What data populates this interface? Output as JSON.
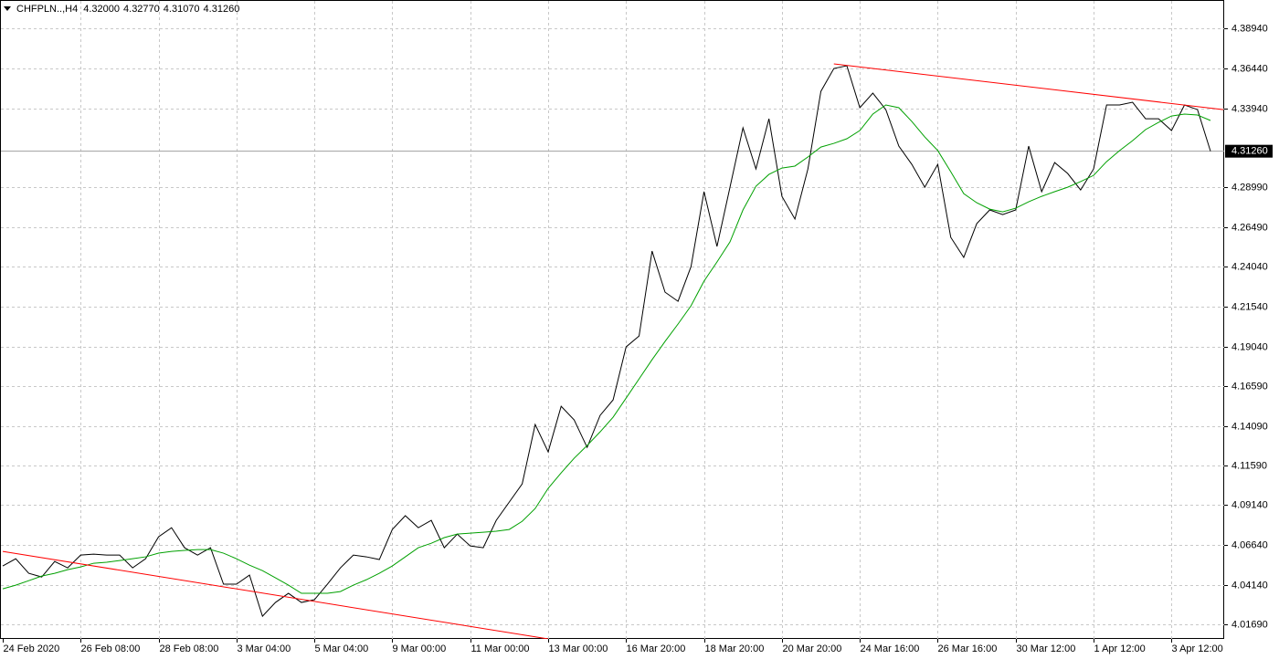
{
  "chart_data": {
    "type": "line",
    "symbol": "CHFPLN..,H4",
    "ohlc": [
      "4.32000",
      "4.32770",
      "4.31070",
      "4.31260"
    ],
    "categories": [
      "24 Feb 2020",
      null,
      null,
      null,
      null,
      null,
      "26 Feb 08:00",
      null,
      null,
      null,
      null,
      null,
      "28 Feb 08:00",
      null,
      null,
      null,
      null,
      null,
      "3 Mar 04:00",
      null,
      null,
      null,
      null,
      null,
      "5 Mar 04:00",
      null,
      null,
      null,
      null,
      null,
      "9 Mar 00:00",
      null,
      null,
      null,
      null,
      null,
      "11 Mar 00:00",
      null,
      null,
      null,
      null,
      null,
      "13 Mar 00:00",
      null,
      null,
      null,
      null,
      null,
      "16 Mar 20:00",
      null,
      null,
      null,
      null,
      null,
      "18 Mar 20:00",
      null,
      null,
      null,
      null,
      null,
      "20 Mar 20:00",
      null,
      null,
      null,
      null,
      null,
      "24 Mar 16:00",
      null,
      null,
      null,
      null,
      null,
      "26 Mar 16:00",
      null,
      null,
      null,
      null,
      null,
      "30 Mar 12:00",
      null,
      null,
      null,
      null,
      null,
      "1 Apr 12:00",
      null,
      null,
      null,
      null,
      null,
      "3 Apr 12:00",
      null,
      null,
      null
    ],
    "series": [
      {
        "color": "#000000",
        "values": [
          4.0534,
          4.0579,
          4.0488,
          4.0465,
          4.0562,
          4.0522,
          4.0602,
          4.0608,
          4.0602,
          4.0602,
          4.0522,
          4.0579,
          4.0716,
          4.0773,
          4.0648,
          4.0602,
          4.0648,
          4.042,
          4.042,
          4.0477,
          4.022,
          4.0306,
          4.0363,
          4.0306,
          4.0323,
          4.042,
          4.0522,
          4.0602,
          4.0591,
          4.0574,
          4.0762,
          4.0848,
          4.0773,
          4.0819,
          4.0648,
          4.0733,
          4.0659,
          4.0648,
          4.0819,
          4.0933,
          4.1047,
          4.1418,
          4.1247,
          4.1532,
          4.1447,
          4.1275,
          4.1475,
          4.1572,
          4.1903,
          4.1971,
          4.2502,
          4.2245,
          4.2188,
          4.2405,
          4.2873,
          4.2531,
          4.2901,
          4.3272,
          4.3015,
          4.3329,
          4.2844,
          4.2702,
          4.3015,
          4.35,
          4.3643,
          4.366,
          4.3398,
          4.3489,
          4.3386,
          4.3158,
          4.3044,
          4.2901,
          4.3044,
          4.2588,
          4.2462,
          4.2673,
          4.2759,
          4.273,
          4.2759,
          4.3158,
          4.2873,
          4.3055,
          4.2987,
          4.2884,
          4.3015,
          4.3415,
          4.3415,
          4.3432,
          4.3329,
          4.3329,
          4.3255,
          4.3415,
          4.3386,
          4.3126
        ]
      },
      {
        "color": "#00a000",
        "values": [
          4.0391,
          4.0414,
          4.0442,
          4.0471,
          4.0488,
          4.0511,
          4.0528,
          4.0551,
          4.0557,
          4.0568,
          4.0579,
          4.0591,
          4.0614,
          4.0625,
          4.0631,
          4.0636,
          4.0636,
          4.0614,
          4.0579,
          4.0539,
          4.0505,
          4.046,
          4.0414,
          4.0363,
          4.0363,
          4.0363,
          4.0374,
          4.0414,
          4.0448,
          4.0488,
          4.0534,
          4.0591,
          4.0648,
          4.0676,
          4.0711,
          4.0733,
          4.0739,
          4.0745,
          4.0751,
          4.0762,
          4.0813,
          4.0893,
          4.1019,
          4.1116,
          4.1207,
          4.1287,
          4.1372,
          4.1464,
          4.1583,
          4.1703,
          4.1823,
          4.1937,
          4.2046,
          4.216,
          4.2314,
          4.2434,
          4.2559,
          4.2759,
          4.2907,
          4.2981,
          4.3021,
          4.3033,
          4.309,
          4.3152,
          4.3175,
          4.3204,
          4.3255,
          4.3358,
          4.3415,
          4.3398,
          4.3312,
          4.3215,
          4.313,
          4.2998,
          4.2861,
          4.2804,
          4.2764,
          4.2747,
          4.277,
          4.281,
          4.2844,
          4.2873,
          4.2901,
          4.2936,
          4.2975,
          4.3061,
          4.313,
          4.3192,
          4.3261,
          4.3306,
          4.3346,
          4.3358,
          4.3352,
          4.3318
        ]
      }
    ],
    "trendlines": [
      {
        "color": "#ff0000",
        "x": [
          0,
          42
        ],
        "values": [
          4.0625,
          4.0078
        ]
      },
      {
        "color": "#ff0000",
        "x": [
          64,
          94
        ],
        "values": [
          4.3672,
          4.3386
        ]
      }
    ],
    "last_price": {
      "value": 4.3126,
      "label": "4.31260"
    },
    "ylim": [
      4.0078,
      4.4071
    ],
    "yticks": [
      {
        "value": 4.3894,
        "label": "4.38940"
      },
      {
        "value": 4.3644,
        "label": "4.36440"
      },
      {
        "value": 4.3394,
        "label": "4.33940"
      },
      {
        "value": 4.2899,
        "label": "4.28990"
      },
      {
        "value": 4.2649,
        "label": "4.26490"
      },
      {
        "value": 4.2404,
        "label": "4.24040"
      },
      {
        "value": 4.2154,
        "label": "4.21540"
      },
      {
        "value": 4.1904,
        "label": "4.19040"
      },
      {
        "value": 4.1659,
        "label": "4.16590"
      },
      {
        "value": 4.1409,
        "label": "4.14090"
      },
      {
        "value": 4.1159,
        "label": "4.11590"
      },
      {
        "value": 4.0914,
        "label": "4.09140"
      },
      {
        "value": 4.0664,
        "label": "4.06640"
      },
      {
        "value": 4.0414,
        "label": "4.04140"
      },
      {
        "value": 4.0169,
        "label": "4.01690"
      }
    ],
    "grid": true
  }
}
